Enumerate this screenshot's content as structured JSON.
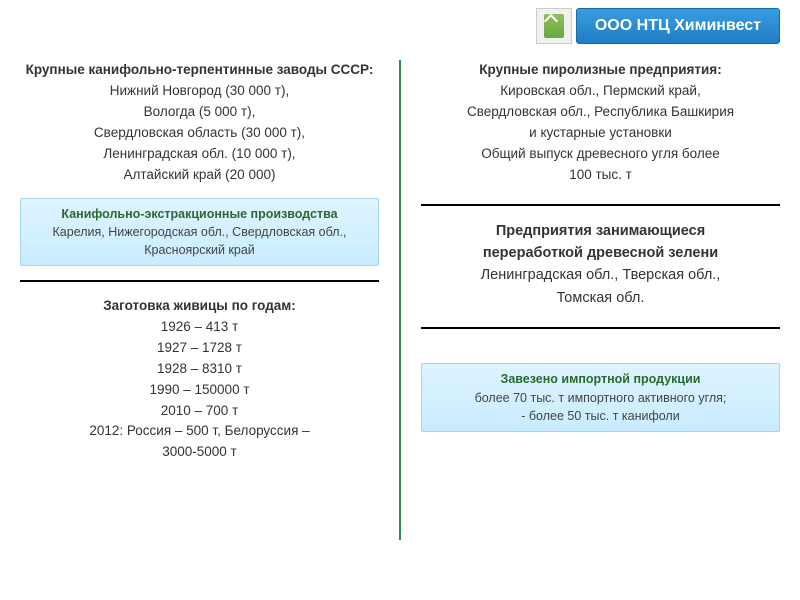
{
  "header": {
    "company": "ООО НТЦ Химинвест"
  },
  "left": {
    "sec1": {
      "title": "Крупные канифольно-терпентинные заводы СССР:",
      "lines": [
        "Нижний Новгород (30 000 т),",
        "Вологда (5 000 т),",
        "Свердловская область (30 000 т),",
        "Ленинградская обл. (10 000 т),",
        "Алтайский край (20 000)"
      ]
    },
    "box1": {
      "title": "Канифольно-экстракционные производства",
      "body": "Карелия, Нижегородская обл., Свердловская обл., Красноярский край"
    },
    "sec2": {
      "title": "Заготовка живицы по годам:",
      "lines": [
        "1926 – 413 т",
        "1927 – 1728 т",
        "1928 – 8310 т",
        "1990 – 150000 т",
        "2010 – 700 т",
        "2012: Россия  – 500 т, Белоруссия –",
        "3000-5000 т"
      ]
    }
  },
  "right": {
    "sec1": {
      "title": "Крупные пиролизные предприятия:",
      "lines": [
        "Кировская обл., Пермский край,",
        "Свердловская обл., Республика Башкирия",
        "и кустарные установки",
        "Общий выпуск древесного угля более",
        "100 тыс. т"
      ]
    },
    "sec2": {
      "title_lines": [
        "Предприятия занимающиеся",
        "переработкой древесной зелени"
      ],
      "body_lines": [
        "Ленинградская обл., Тверская обл.,",
        "Томская обл."
      ]
    },
    "box1": {
      "title": "Завезено импортной продукции",
      "lines": [
        "более 70 тыс. т импортного активного угля;",
        "- более 50 тыс. т канифоли"
      ]
    }
  }
}
